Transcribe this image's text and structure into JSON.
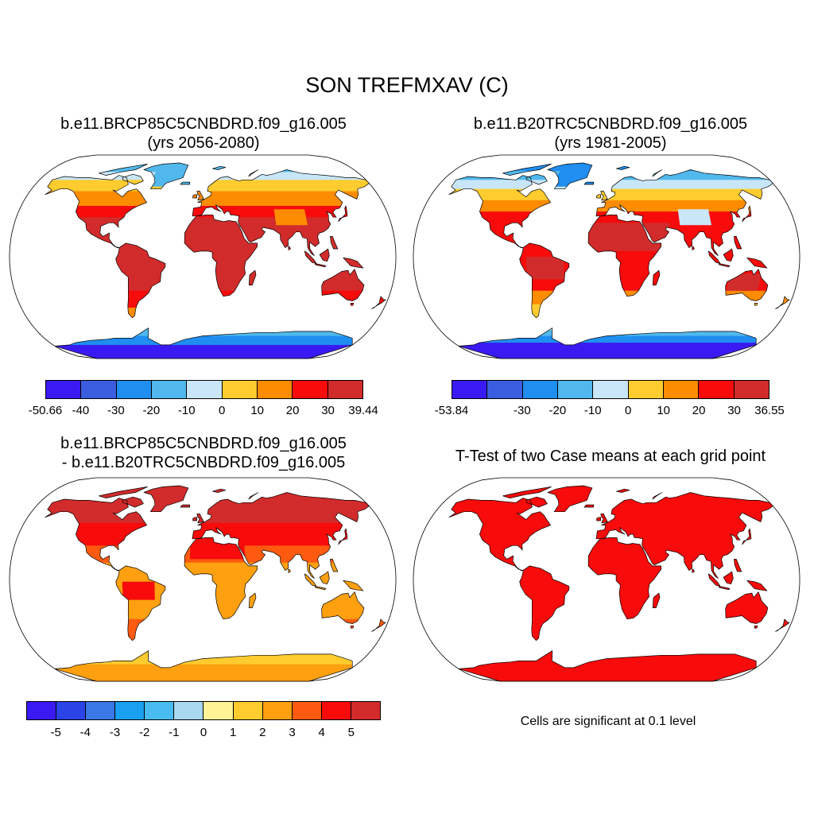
{
  "main_title": "SON TREFMXAV (C)",
  "panels": [
    {
      "title_line1": "b.e11.BRCP85C5CNBDRD.f09_g16.005",
      "title_line2": "(yrs 2056-2080)"
    },
    {
      "title_line1": "b.e11.B20TRC5CNBDRD.f09_g16.005",
      "title_line2": "(yrs 1981-2005)"
    },
    {
      "title_line1": "b.e11.BRCP85C5CNBDRD.f09_g16.005",
      "title_line2": "- b.e11.B20TRC5CNBDRD.f09_g16.005"
    },
    {
      "title_line1": "T-Test of two Case means at each grid point",
      "title_line2": ""
    }
  ],
  "colorbars": [
    {
      "colors": [
        "#3a1af2",
        "#3b5ee0",
        "#1f8ef0",
        "#50b8ec",
        "#c8e6f8",
        "#fecc2f",
        "#fe8c00",
        "#f70b0b",
        "#d22b2b"
      ],
      "labels": [
        "-50.66",
        "-40",
        "-30",
        "-20",
        "-10",
        "0",
        "10",
        "20",
        "30",
        "39.44"
      ]
    },
    {
      "colors": [
        "#3a1af2",
        "#3b5ee0",
        "#1f8ef0",
        "#50b8ec",
        "#c8e6f8",
        "#fecc2f",
        "#fe8c00",
        "#f70b0b",
        "#d22b2b"
      ],
      "labels": [
        "-53.84",
        "",
        "-30",
        "-20",
        "-10",
        "0",
        "10",
        "20",
        "30",
        "36.55"
      ]
    },
    {
      "colors": [
        "#3a1af2",
        "#2a44e8",
        "#3a78e8",
        "#1aa0f0",
        "#48bcf0",
        "#a8d8f0",
        "#fef496",
        "#fecc2f",
        "#fea010",
        "#fe5a10",
        "#f70b0b",
        "#d22b2b"
      ],
      "labels": [
        "",
        "-5",
        "-4",
        "-3",
        "-2",
        "-1",
        "0",
        "1",
        "2",
        "3",
        "4",
        "5",
        ""
      ]
    }
  ],
  "note": "Cells are significant at 0.1 level",
  "palettes": {
    "future": {
      "polar": "#3a1af2",
      "cold": "#1f8ef0",
      "cool": "#50b8ec",
      "light": "#c8e6f8",
      "mild": "#fecc2f",
      "warm": "#fe8c00",
      "hot": "#f70b0b",
      "hottest": "#d22b2b"
    },
    "present": {
      "polar": "#3a1af2",
      "cold": "#1f8ef0",
      "cool": "#50b8ec",
      "light": "#c8e6f8",
      "mild": "#fecc2f",
      "warm": "#fe8c00",
      "hot": "#f70b0b",
      "hottest": "#d22b2b"
    },
    "diff": {
      "ant": "#fecc2f",
      "ant2": "#fea010",
      "trop": "#fea010",
      "mid": "#fe5a10",
      "hi": "#f70b0b",
      "top": "#d22b2b"
    },
    "ttest": {
      "fill": "#f70b0b"
    }
  }
}
